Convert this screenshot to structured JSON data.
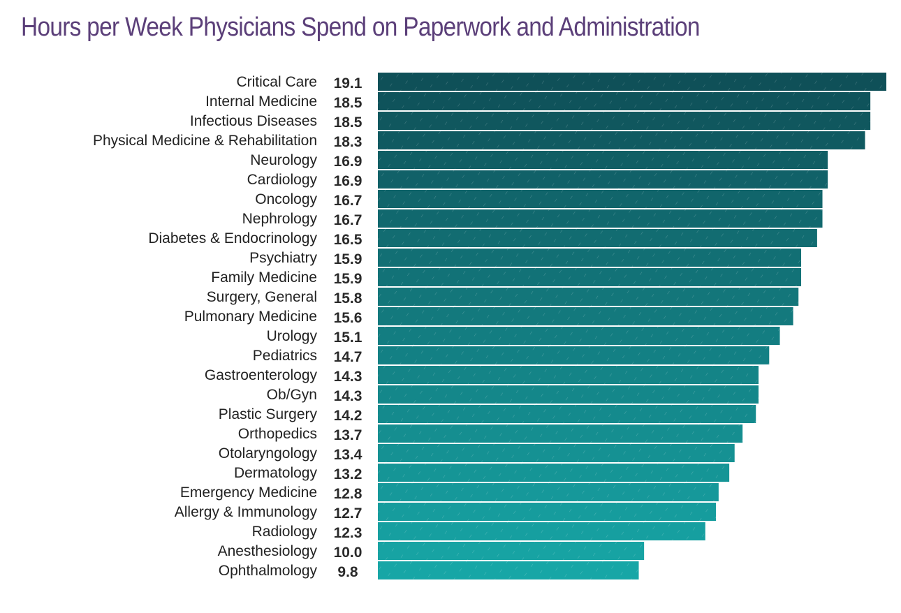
{
  "chart_data": {
    "type": "bar",
    "orientation": "horizontal",
    "title": "Hours per Week Physicians Spend on Paperwork and Administration",
    "categories": [
      "Critical Care",
      "Internal Medicine",
      "Infectious Diseases",
      "Physical Medicine & Rehabilitation",
      "Neurology",
      "Cardiology",
      "Oncology",
      "Nephrology",
      "Diabetes & Endocrinology",
      "Psychiatry",
      "Family Medicine",
      "Surgery, General",
      "Pulmonary Medicine",
      "Urology",
      "Pediatrics",
      "Gastroenterology",
      "Ob/Gyn",
      "Plastic Surgery",
      "Orthopedics",
      "Otolaryngology",
      "Dermatology",
      "Emergency Medicine",
      "Allergy & Immunology",
      "Radiology",
      "Anesthesiology",
      "Ophthalmology"
    ],
    "values": [
      19.1,
      18.5,
      18.5,
      18.3,
      16.9,
      16.9,
      16.7,
      16.7,
      16.5,
      15.9,
      15.9,
      15.8,
      15.6,
      15.1,
      14.7,
      14.3,
      14.3,
      14.2,
      13.7,
      13.4,
      13.2,
      12.8,
      12.7,
      12.3,
      10.0,
      9.8
    ],
    "value_labels": [
      "19.1",
      "18.5",
      "18.5",
      "18.3",
      "16.9",
      "16.9",
      "16.7",
      "16.7",
      "16.5",
      "15.9",
      "15.9",
      "15.8",
      "15.6",
      "15.1",
      "14.7",
      "14.3",
      "14.3",
      "14.2",
      "13.7",
      "13.4",
      "13.2",
      "12.8",
      "12.7",
      "12.3",
      "10.0",
      "9.8"
    ],
    "xlim": [
      0,
      19.1
    ],
    "grid": false,
    "legend": "none",
    "colors": {
      "title": "#5b3f79",
      "bar_top": "#0f5058",
      "bar_bottom": "#17a6a6",
      "text": "#222222"
    }
  }
}
